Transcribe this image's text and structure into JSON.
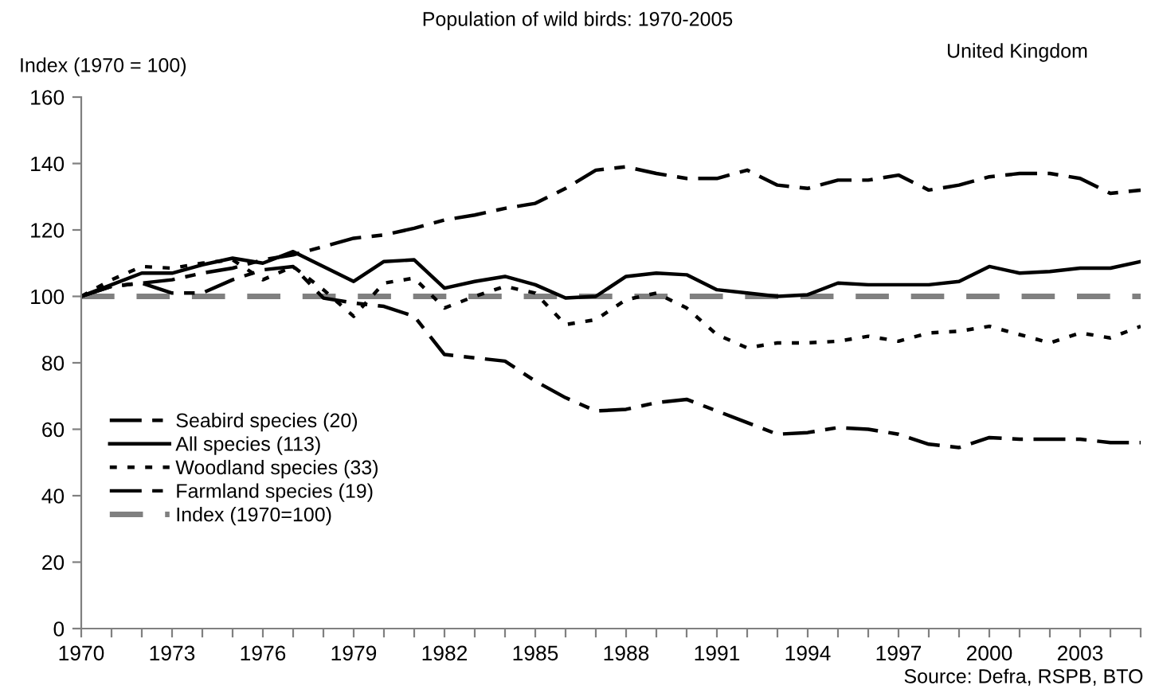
{
  "chart_data": {
    "type": "line",
    "title": "Population of wild birds: 1970-2005",
    "ylabel": "Index (1970 = 100)",
    "annotations": [
      "United Kingdom",
      "Source: Defra, RSPB, BTO"
    ],
    "x": [
      1970,
      1971,
      1972,
      1973,
      1974,
      1975,
      1976,
      1977,
      1978,
      1979,
      1980,
      1981,
      1982,
      1983,
      1984,
      1985,
      1986,
      1987,
      1988,
      1989,
      1990,
      1991,
      1992,
      1993,
      1994,
      1995,
      1996,
      1997,
      1998,
      1999,
      2000,
      2001,
      2002,
      2003,
      2004,
      2005
    ],
    "series": [
      {
        "name": "Seabird species (20)",
        "color": "#000000",
        "line_style": "dashed",
        "values": [
          100,
          103,
          104,
          105,
          107,
          108.5,
          111,
          112.5,
          115,
          117.5,
          118.5,
          120.5,
          123,
          124.5,
          126.5,
          128,
          132.5,
          138,
          139,
          137,
          135.5,
          135.5,
          138,
          133.5,
          132.5,
          135,
          135,
          136.5,
          132,
          133.5,
          136,
          137,
          137,
          135.5,
          131,
          132
        ]
      },
      {
        "name": "All species (113)",
        "color": "#000000",
        "line_style": "solid",
        "values": [
          100,
          103.5,
          107,
          107,
          109.5,
          111.5,
          110,
          113.5,
          109,
          104.5,
          110.5,
          111,
          102.5,
          104.5,
          106,
          103.5,
          99.5,
          100,
          106,
          107,
          106.5,
          102,
          101,
          100,
          100.5,
          104,
          103.5,
          103.5,
          103.5,
          104.5,
          109,
          107,
          107.5,
          108.5,
          108.5,
          110.5
        ]
      },
      {
        "name": "Woodland species (33)",
        "color": "#000000",
        "line_style": "dotted",
        "values": [
          100,
          105,
          109,
          108.5,
          110,
          111,
          105,
          109,
          102,
          94,
          104,
          105.5,
          96.5,
          100,
          103,
          101,
          91.5,
          93,
          99,
          101,
          96.5,
          88.5,
          84.5,
          86,
          86,
          86.5,
          88,
          86.5,
          89,
          89.5,
          91,
          88.5,
          86,
          89,
          87.5,
          91
        ]
      },
      {
        "name": "Farmland species (19)",
        "color": "#000000",
        "line_style": "dashed",
        "values": [
          100,
          103,
          104,
          101,
          101,
          105,
          108,
          109,
          99.5,
          98,
          97,
          94,
          82.5,
          81.5,
          80.5,
          74.5,
          69.5,
          65.5,
          66,
          68,
          69,
          65.5,
          62,
          58.5,
          59,
          60.5,
          60,
          58.5,
          55.5,
          54.5,
          57.5,
          57,
          57,
          57,
          56,
          56
        ]
      }
    ],
    "ref_lines": [
      {
        "axis": "y",
        "value": 100,
        "label": "Index (1970=100)",
        "color": "#808080",
        "line_style": "dashed"
      }
    ],
    "xlim": [
      1970,
      2005
    ],
    "xticks": [
      1970,
      {
        "value": 1971,
        "label": null
      },
      {
        "value": 1972,
        "label": null
      },
      1973,
      {
        "value": 1974,
        "label": null
      },
      {
        "value": 1975,
        "label": null
      },
      1976,
      {
        "value": 1977,
        "label": null
      },
      {
        "value": 1978,
        "label": null
      },
      1979,
      {
        "value": 1980,
        "label": null
      },
      {
        "value": 1981,
        "label": null
      },
      1982,
      {
        "value": 1983,
        "label": null
      },
      {
        "value": 1984,
        "label": null
      },
      1985,
      {
        "value": 1986,
        "label": null
      },
      {
        "value": 1987,
        "label": null
      },
      1988,
      {
        "value": 1989,
        "label": null
      },
      {
        "value": 1990,
        "label": null
      },
      1991,
      {
        "value": 1992,
        "label": null
      },
      {
        "value": 1993,
        "label": null
      },
      1994,
      {
        "value": 1995,
        "label": null
      },
      {
        "value": 1996,
        "label": null
      },
      1997,
      {
        "value": 1998,
        "label": null
      },
      {
        "value": 1999,
        "label": null
      },
      2000,
      {
        "value": 2001,
        "label": null
      },
      {
        "value": 2002,
        "label": null
      },
      2003,
      {
        "value": 2004,
        "label": null
      },
      {
        "value": 2005,
        "label": null
      }
    ],
    "ylim": [
      0,
      160
    ],
    "yticks": [
      0,
      20,
      40,
      60,
      80,
      100,
      120,
      140,
      160
    ],
    "grid": false,
    "legend": "left",
    "marker": "none"
  }
}
